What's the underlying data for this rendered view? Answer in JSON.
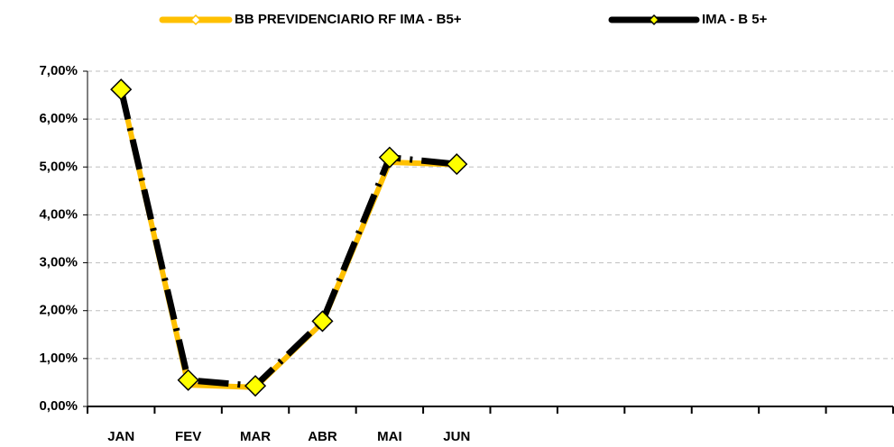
{
  "chart_data": {
    "type": "line",
    "categories": [
      "JAN",
      "FEV",
      "MAR",
      "ABR",
      "MAI",
      "JUN",
      null,
      null,
      null,
      null,
      null,
      null
    ],
    "series": [
      {
        "name": "BB PREVIDENCIARIO RF IMA - B5+",
        "color": "#ffc000",
        "values": [
          6.6,
          0.45,
          0.4,
          1.75,
          5.1,
          5.05,
          null,
          null,
          null,
          null,
          null,
          null
        ]
      },
      {
        "name": "IMA - B 5+",
        "color": "#000000",
        "marker_color": "#ffff00",
        "values": [
          6.62,
          0.55,
          0.43,
          1.78,
          5.2,
          5.06,
          null,
          null,
          null,
          null,
          null,
          null
        ]
      }
    ],
    "ylim": [
      0,
      7
    ],
    "yticks": [
      {
        "value": 0,
        "label": "0,00%"
      },
      {
        "value": 1,
        "label": "1,00%"
      },
      {
        "value": 2,
        "label": "2,00%"
      },
      {
        "value": 3,
        "label": "3,00%"
      },
      {
        "value": 4,
        "label": "4,00%"
      },
      {
        "value": 5,
        "label": "5,00%"
      },
      {
        "value": 6,
        "label": "6,00%"
      },
      {
        "value": 7,
        "label": "7,00%"
      }
    ],
    "grid": true,
    "legend": "top"
  }
}
